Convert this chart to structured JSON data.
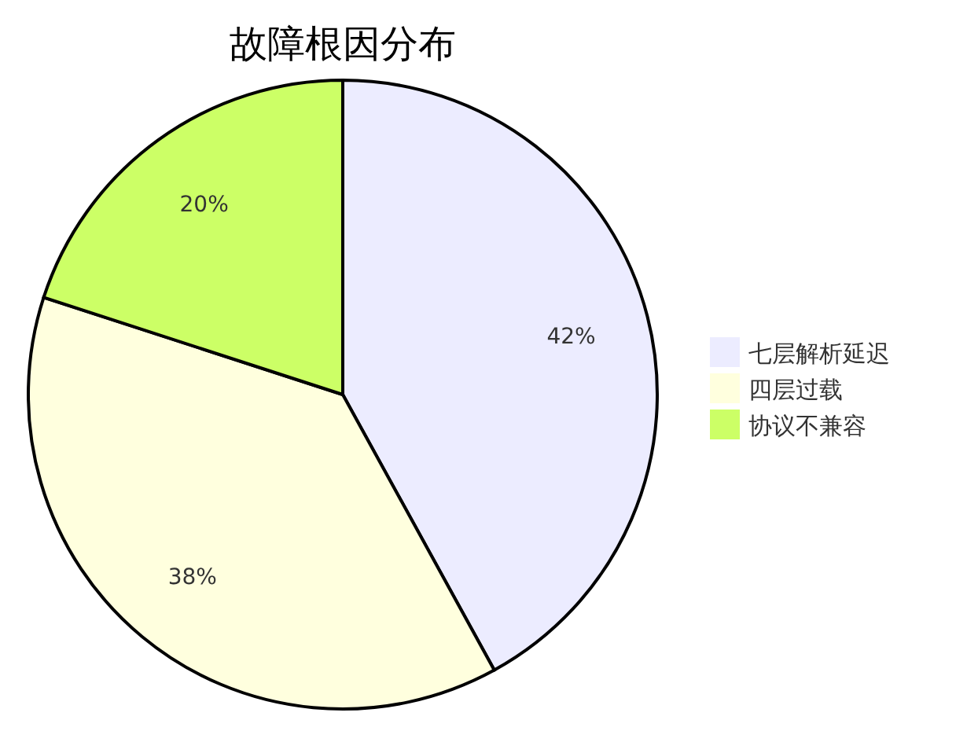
{
  "chart_data": {
    "type": "pie",
    "title": "故障根因分布",
    "categories": [
      "七层解析延迟",
      "四层过载",
      "协议不兼容"
    ],
    "values": [
      42,
      38,
      20
    ],
    "colors": [
      "#ececff",
      "#ffffde",
      "#ccff66"
    ],
    "value_labels": [
      "42%",
      "38%",
      "20%"
    ],
    "legend": "right"
  }
}
